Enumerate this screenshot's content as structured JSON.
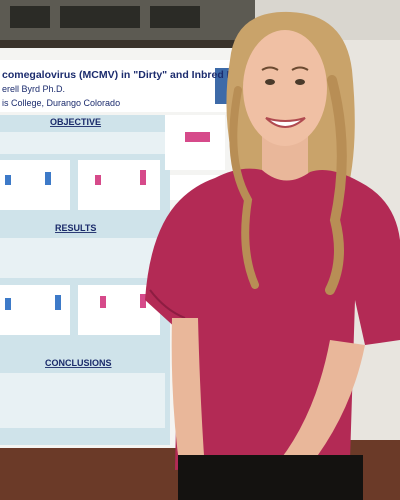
{
  "poster": {
    "title": "comegalovirus (MCMV) in \"Dirty\" and Inbred Mice",
    "author": "erell Byrd Ph.D.",
    "affiliation": "is College, Durango Colorado",
    "sections": [
      "OBJECTIVE",
      "RESULTS",
      "CONCLUSIONS"
    ]
  }
}
